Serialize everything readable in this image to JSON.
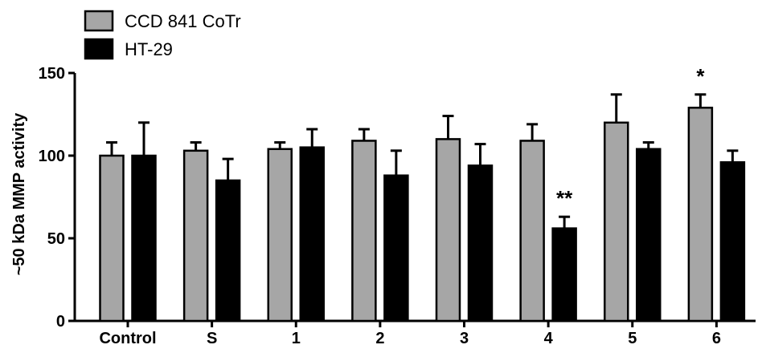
{
  "chart_data": {
    "type": "bar",
    "title": "",
    "xlabel": "",
    "ylabel": "~50 kDa MMP activity",
    "ylim": [
      0,
      150
    ],
    "yticks": [
      0,
      50,
      100,
      150
    ],
    "grid": false,
    "legend_position": "top-left",
    "categories": [
      "Control",
      "S",
      "1",
      "2",
      "3",
      "4",
      "5",
      "6"
    ],
    "series": [
      {
        "name": "CCD 841 CoTr",
        "color": "#a6a6a6",
        "values": [
          100,
          103,
          104,
          109,
          110,
          109,
          120,
          129
        ],
        "errors": [
          8,
          5,
          4,
          7,
          14,
          10,
          17,
          8
        ]
      },
      {
        "name": "HT-29",
        "color": "#000000",
        "values": [
          100,
          85,
          105,
          88,
          94,
          56,
          104,
          96
        ],
        "errors": [
          20,
          13,
          11,
          15,
          13,
          7,
          4,
          7
        ]
      }
    ],
    "annotations": [
      {
        "category": "4",
        "series": 1,
        "text": "**"
      },
      {
        "category": "6",
        "series": 0,
        "text": "*"
      }
    ]
  }
}
